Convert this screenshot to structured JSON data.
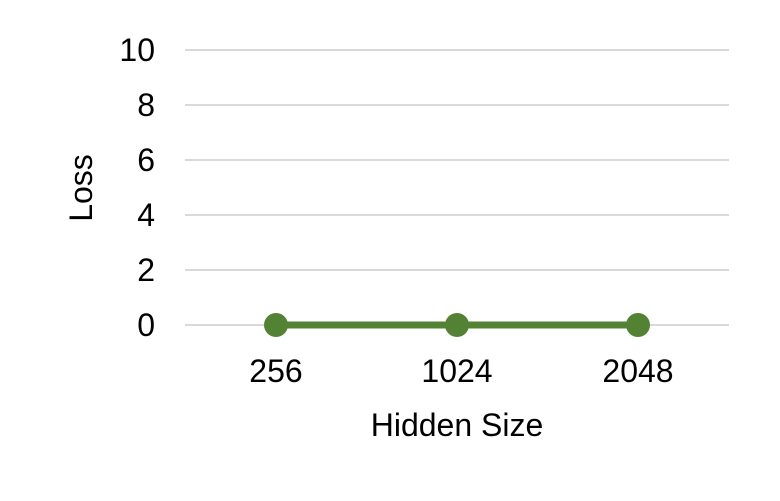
{
  "chart_data": {
    "type": "line",
    "title": "",
    "xlabel": "Hidden Size",
    "ylabel": "Loss",
    "categories": [
      "256",
      "1024",
      "2048"
    ],
    "series": [
      {
        "values": [
          0,
          0,
          0
        ],
        "color": "#548235"
      }
    ],
    "ylim": [
      0,
      10
    ],
    "yticks": [
      0,
      2,
      4,
      6,
      8,
      10
    ],
    "ytick_labels": [
      "0",
      "2",
      "4",
      "6",
      "8",
      "10"
    ],
    "grid": true,
    "grid_color": "#d9d9d9",
    "legend": "none"
  }
}
